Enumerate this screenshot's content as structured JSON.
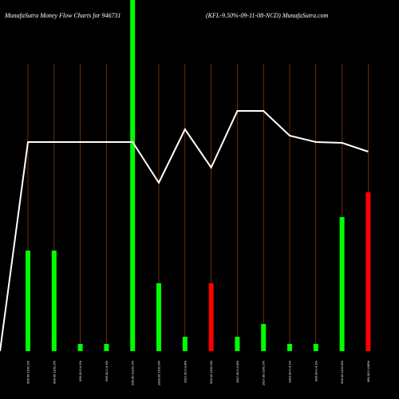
{
  "chart_data": {
    "type": "bar",
    "title": "MunafaSutra  Money Flow  Charts for 946731",
    "subtitle": "(KFL-9.50%-09-11-08-NCD) MunafaSutra.com",
    "categories": [
      "996.00 1162.2%",
      "996.00 1162.2%",
      "996.00 0.4.1%",
      "996.00 0.4.1%",
      "996.00 11162.2%",
      "1000.00 1161.0%",
      "1012.00 0.3.8%",
      "999.00 1161.0%",
      "1017.00 0.3.8%",
      "1017.00 1162.1%",
      "1003.00 0.4.1%",
      "996.00 0.4.1%",
      "996.00 1193.8%",
      "995.00 0.196%"
    ],
    "values": [
      126,
      126,
      9,
      9,
      440,
      85,
      18,
      85,
      18,
      34,
      9,
      9,
      168,
      199
    ],
    "colors": [
      "#00ff00",
      "#00ff00",
      "#00ff00",
      "#00ff00",
      "#00ff00",
      "#00ff00",
      "#00ff00",
      "#ff0000",
      "#00ff00",
      "#00ff00",
      "#00ff00",
      "#00ff00",
      "#00ff00",
      "#ff0000"
    ],
    "ylim": [
      0,
      440
    ],
    "line": {
      "color": "#ffffff",
      "start": 0,
      "values": [
        262,
        262,
        262,
        262,
        262,
        211,
        278,
        230,
        301,
        301,
        270,
        262,
        261,
        250
      ]
    },
    "grid_color": "#8b4513"
  }
}
